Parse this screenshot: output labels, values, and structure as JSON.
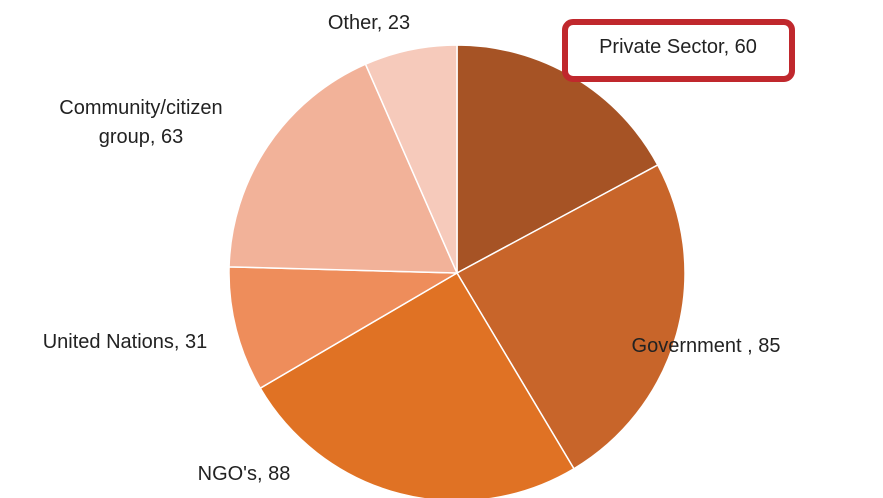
{
  "chart_data": {
    "type": "pie",
    "start_angle_deg": 0,
    "direction": "clockwise",
    "slices": [
      {
        "label": "Private Sector",
        "value": 60,
        "color": "#a65325",
        "highlighted": true
      },
      {
        "label": "Government",
        "value": 85,
        "color": "#c8652a"
      },
      {
        "label": "NGO's",
        "value": 88,
        "color": "#e07224"
      },
      {
        "label": "United Nations",
        "value": 31,
        "color": "#ee8d5b"
      },
      {
        "label": "Community/citizen group",
        "value": 63,
        "color": "#f2b299"
      },
      {
        "label": "Other",
        "value": 23,
        "color": "#f6cabb"
      }
    ],
    "data_labels": [
      {
        "lines": [
          "Private Sector, 60"
        ],
        "highlighted": true
      },
      {
        "lines": [
          "Government , 85"
        ]
      },
      {
        "lines": [
          "NGO's, 88"
        ]
      },
      {
        "lines": [
          "United Nations, 31"
        ]
      },
      {
        "lines": [
          "Community/citizen",
          "group, 63"
        ]
      },
      {
        "lines": [
          "Other, 23"
        ]
      }
    ],
    "highlight_color": "#c0282d",
    "legend": "none"
  }
}
